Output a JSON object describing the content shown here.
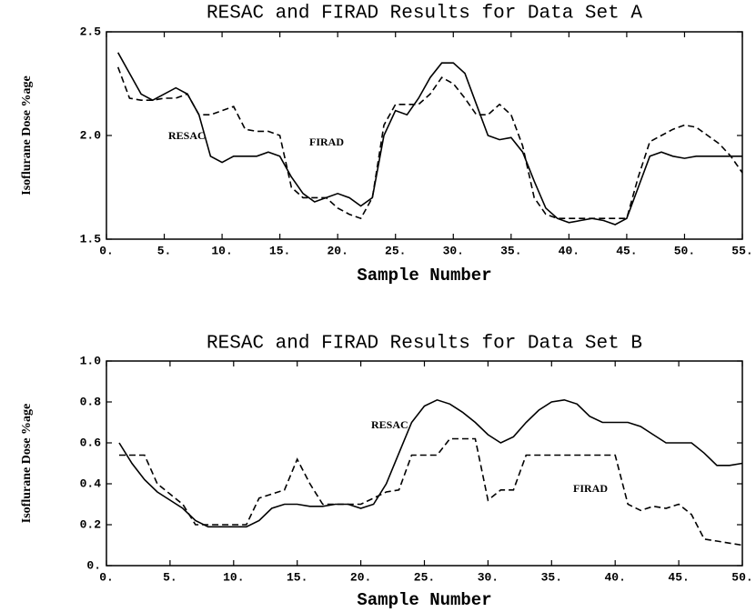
{
  "chart_data": [
    {
      "type": "line",
      "title": "RESAC and FIRAD Results for Data Set A",
      "x_label": "Sample Number",
      "y_label": "Isoflurane Dose %age",
      "x": [
        1,
        2,
        3,
        4,
        5,
        6,
        7,
        8,
        9,
        10,
        11,
        12,
        13,
        14,
        15,
        16,
        17,
        18,
        19,
        20,
        21,
        22,
        23,
        24,
        25,
        26,
        27,
        28,
        29,
        30,
        31,
        32,
        33,
        34,
        35,
        36,
        37,
        38,
        39,
        40,
        41,
        42,
        43,
        44,
        45,
        46,
        47,
        48,
        49,
        50,
        51,
        52,
        53,
        54,
        55
      ],
      "series": [
        {
          "name": "RESAC",
          "color": "#000000",
          "dashed": false,
          "values": [
            2.4,
            2.3,
            2.2,
            2.17,
            2.2,
            2.23,
            2.2,
            2.1,
            1.9,
            1.87,
            1.9,
            1.9,
            1.9,
            1.92,
            1.9,
            1.8,
            1.72,
            1.68,
            1.7,
            1.72,
            1.7,
            1.66,
            1.7,
            2.0,
            2.12,
            2.1,
            2.18,
            2.28,
            2.35,
            2.35,
            2.3,
            2.15,
            2.0,
            1.98,
            1.99,
            1.92,
            1.78,
            1.65,
            1.6,
            1.58,
            1.59,
            1.6,
            1.59,
            1.57,
            1.6,
            1.75,
            1.9,
            1.92,
            1.9,
            1.89,
            1.9,
            1.9,
            1.9,
            1.9,
            1.9
          ]
        },
        {
          "name": "FIRAD",
          "color": "#000000",
          "dashed": true,
          "values": [
            2.33,
            2.18,
            2.17,
            2.17,
            2.18,
            2.18,
            2.2,
            2.1,
            2.1,
            2.12,
            2.14,
            2.03,
            2.02,
            2.02,
            2.0,
            1.75,
            1.7,
            1.7,
            1.7,
            1.65,
            1.62,
            1.6,
            1.7,
            2.05,
            2.15,
            2.15,
            2.15,
            2.2,
            2.28,
            2.25,
            2.18,
            2.1,
            2.1,
            2.15,
            2.1,
            1.95,
            1.7,
            1.62,
            1.6,
            1.6,
            1.6,
            1.6,
            1.6,
            1.6,
            1.6,
            1.8,
            1.97,
            2.0,
            2.03,
            2.05,
            2.04,
            2.0,
            1.96,
            1.9,
            1.82
          ]
        }
      ],
      "xlim": [
        0,
        55
      ],
      "ylim": [
        1.5,
        2.5
      ],
      "xticks": [
        {
          "value": 0,
          "label": "0."
        },
        {
          "value": 5,
          "label": "5."
        },
        {
          "value": 10,
          "label": "10."
        },
        {
          "value": 15,
          "label": "15."
        },
        {
          "value": 20,
          "label": "20."
        },
        {
          "value": 25,
          "label": "25."
        },
        {
          "value": 30,
          "label": "30."
        },
        {
          "value": 35,
          "label": "35."
        },
        {
          "value": 40,
          "label": "40."
        },
        {
          "value": 45,
          "label": "45."
        },
        {
          "value": 50,
          "label": "50."
        },
        {
          "value": 55,
          "label": "55."
        }
      ],
      "yticks": [
        1.5,
        {
          "value": 2,
          "label": "2.0"
        },
        2.5
      ],
      "grid": false
    },
    {
      "type": "line",
      "title": "RESAC and FIRAD Results for Data Set B",
      "x_label": "Sample Number",
      "y_label": "Isoflurane Dose %age",
      "x": [
        1,
        2,
        3,
        4,
        5,
        6,
        7,
        8,
        9,
        10,
        11,
        12,
        13,
        14,
        15,
        16,
        17,
        18,
        19,
        20,
        21,
        22,
        23,
        24,
        25,
        26,
        27,
        28,
        29,
        30,
        31,
        32,
        33,
        34,
        35,
        36,
        37,
        38,
        39,
        40,
        41,
        42,
        43,
        44,
        45,
        46,
        47,
        48,
        49,
        50
      ],
      "series": [
        {
          "name": "RESAC",
          "color": "#000000",
          "dashed": false,
          "values": [
            0.6,
            0.5,
            0.42,
            0.36,
            0.32,
            0.28,
            0.22,
            0.19,
            0.19,
            0.19,
            0.19,
            0.22,
            0.28,
            0.3,
            0.3,
            0.29,
            0.29,
            0.3,
            0.3,
            0.28,
            0.3,
            0.4,
            0.55,
            0.7,
            0.78,
            0.81,
            0.79,
            0.75,
            0.7,
            0.64,
            0.6,
            0.63,
            0.7,
            0.76,
            0.8,
            0.81,
            0.79,
            0.73,
            0.7,
            0.7,
            0.7,
            0.68,
            0.64,
            0.6,
            0.6,
            0.6,
            0.55,
            0.49,
            0.49,
            0.5
          ]
        },
        {
          "name": "FIRAD",
          "color": "#000000",
          "dashed": true,
          "values": [
            0.54,
            0.54,
            0.54,
            0.4,
            0.35,
            0.3,
            0.2,
            0.2,
            0.2,
            0.2,
            0.2,
            0.33,
            0.35,
            0.37,
            0.52,
            0.4,
            0.3,
            0.3,
            0.3,
            0.3,
            0.33,
            0.36,
            0.37,
            0.54,
            0.54,
            0.54,
            0.62,
            0.62,
            0.62,
            0.32,
            0.37,
            0.37,
            0.54,
            0.54,
            0.54,
            0.54,
            0.54,
            0.54,
            0.54,
            0.54,
            0.3,
            0.27,
            0.29,
            0.28,
            0.3,
            0.25,
            0.13,
            0.12,
            0.11,
            0.1
          ]
        }
      ],
      "xlim": [
        0,
        50
      ],
      "ylim": [
        0,
        1
      ],
      "xticks": [
        {
          "value": 0,
          "label": "0."
        },
        {
          "value": 5,
          "label": "5."
        },
        {
          "value": 10,
          "label": "10."
        },
        {
          "value": 15,
          "label": "15."
        },
        {
          "value": 20,
          "label": "20."
        },
        {
          "value": 25,
          "label": "25."
        },
        {
          "value": 30,
          "label": "30."
        },
        {
          "value": 35,
          "label": "35."
        },
        {
          "value": 40,
          "label": "40."
        },
        {
          "value": 45,
          "label": "45."
        },
        {
          "value": 50,
          "label": "50."
        }
      ],
      "yticks": [
        {
          "value": 0,
          "label": "0."
        },
        0.2,
        0.4,
        0.6,
        0.8,
        {
          "value": 1,
          "label": "1.0"
        }
      ],
      "grid": false
    }
  ]
}
